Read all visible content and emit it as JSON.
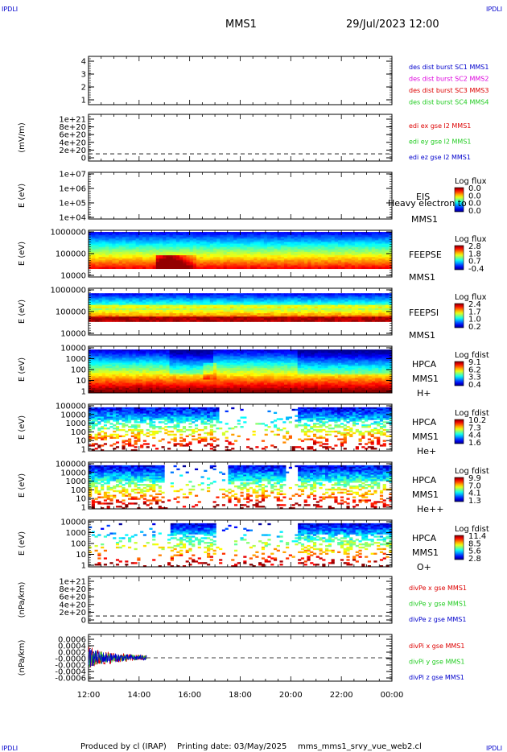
{
  "header": {
    "corner_label": "IPDLI",
    "mission": "MMS1",
    "datetime": "29/Jul/2023 12:00"
  },
  "footer": {
    "credit": "Produced by cl (IRAP)",
    "printing_date": "Printing date: 03/May/2025",
    "script_name": "mms_mms1_srvy_vue_web2.cl"
  },
  "colors": {
    "axis": "#000000",
    "blue": "#0000cc",
    "red": "#dd0000",
    "green": "#22cc22",
    "magenta": "#dd00dd"
  },
  "chart_data": [
    {
      "type": "line",
      "id": "burst",
      "yticks": [
        "4",
        "3",
        "2",
        "1"
      ],
      "ylim": [
        0.6,
        4.4
      ],
      "series": [
        {
          "name": "des dist burst SC1 MMS1",
          "color": "#0000cc"
        },
        {
          "name": "des dist burst SC2 MMS2",
          "color": "#dd00dd"
        },
        {
          "name": "des dist burst SC3 MMS3",
          "color": "#dd0000"
        },
        {
          "name": "des dist burst SC4 MMS4",
          "color": "#22cc22"
        }
      ]
    },
    {
      "type": "line",
      "id": "edi",
      "ylabel": "(mV/m)",
      "yticks": [
        "1e+21",
        "8e+20",
        "6e+20",
        "4e+20",
        "2e+20",
        "0"
      ],
      "ylim": [
        -2e+20,
        1.1e+21
      ],
      "zero_line": true,
      "series": [
        {
          "name": "edi ex gse l2 MMS1",
          "color": "#dd0000"
        },
        {
          "name": "edi ey gse l2 MMS1",
          "color": "#22cc22"
        },
        {
          "name": "edi ez gse l2 MMS1",
          "color": "#0000cc"
        }
      ]
    },
    {
      "type": "heatmap",
      "id": "eis",
      "ylabel": "E (eV)",
      "yticks": [
        "1e+07",
        "1e+06",
        "1e+05",
        "1e+04"
      ],
      "labels": [
        "EIS",
        "Heavy electron to",
        "MMS1"
      ],
      "colorbar": {
        "title": "Log flux",
        "ticks": [
          "0.0",
          "0.0",
          "0.0",
          "0.0"
        ]
      }
    },
    {
      "type": "heatmap",
      "id": "feepse",
      "ylabel": "E (eV)",
      "yticks": [
        "1000000",
        "100000",
        "10000"
      ],
      "labels": [
        "FEEPSE",
        "MMS1"
      ],
      "colorbar": {
        "title": "Log flux",
        "ticks": [
          "2.8",
          "1.8",
          "0.7",
          "-0.4"
        ]
      }
    },
    {
      "type": "heatmap",
      "id": "feepsi",
      "ylabel": "E (eV)",
      "yticks": [
        "1000000",
        "100000",
        "10000"
      ],
      "labels": [
        "FEEPSI",
        "MMS1"
      ],
      "colorbar": {
        "title": "Log flux",
        "ticks": [
          "2.4",
          "1.7",
          "1.0",
          "0.2"
        ]
      }
    },
    {
      "type": "heatmap",
      "id": "hpca_h",
      "ylabel": "E (eV)",
      "yticks": [
        "10000",
        "1000",
        "100",
        "10",
        "1"
      ],
      "labels": [
        "HPCA",
        "MMS1",
        "H+"
      ],
      "colorbar": {
        "title": "Log fdist",
        "ticks": [
          "9.1",
          "6.2",
          "3.3",
          "0.4"
        ]
      }
    },
    {
      "type": "heatmap",
      "id": "hpca_he",
      "ylabel": "E (eV)",
      "yticks": [
        "100000",
        "10000",
        "1000",
        "100",
        "10",
        "1"
      ],
      "labels": [
        "HPCA",
        "MMS1",
        "He+"
      ],
      "colorbar": {
        "title": "Log fdist",
        "ticks": [
          "10.2",
          "7.3",
          "4.4",
          "1.6"
        ]
      }
    },
    {
      "type": "heatmap",
      "id": "hpca_hepp",
      "ylabel": "E (eV)",
      "yticks": [
        "100000",
        "10000",
        "1000",
        "100",
        "10",
        "1"
      ],
      "labels": [
        "HPCA",
        "MMS1",
        "He++"
      ],
      "colorbar": {
        "title": "Log fdist",
        "ticks": [
          "9.9",
          "7.0",
          "4.1",
          "1.3"
        ]
      }
    },
    {
      "type": "heatmap",
      "id": "hpca_o",
      "ylabel": "E (eV)",
      "yticks": [
        "10000",
        "1000",
        "100",
        "10",
        "1"
      ],
      "labels": [
        "HPCA",
        "MMS1",
        "O+"
      ],
      "colorbar": {
        "title": "Log fdist",
        "ticks": [
          "11.4",
          "8.5",
          "5.6",
          "2.8"
        ]
      }
    },
    {
      "type": "line",
      "id": "divpe",
      "ylabel": "(nPa/km)",
      "yticks": [
        "1e+21",
        "8e+20",
        "6e+20",
        "4e+20",
        "2e+20",
        "0"
      ],
      "ylim": [
        -2e+20,
        1.1e+21
      ],
      "zero_line": true,
      "series": [
        {
          "name": "divPe x gse MMS1",
          "color": "#dd0000"
        },
        {
          "name": "divPe y gse MMS1",
          "color": "#22cc22"
        },
        {
          "name": "divPe z gse MMS1",
          "color": "#0000cc"
        }
      ]
    },
    {
      "type": "line",
      "id": "divpi",
      "ylabel": "(nPa/km)",
      "yticks": [
        "0.0006",
        "0.0004",
        "0.0002",
        "-0.0000",
        "-0.0002",
        "-0.0004",
        "-0.0006"
      ],
      "ylim": [
        -0.0007,
        0.0007
      ],
      "zero_line": true,
      "x_extent_hours": [
        0,
        2.3
      ],
      "series": [
        {
          "name": "divPi x gse MMS1",
          "color": "#dd0000"
        },
        {
          "name": "divPi y gse MMS1",
          "color": "#22cc22"
        },
        {
          "name": "divPi z gse MMS1",
          "color": "#0000cc"
        }
      ]
    }
  ],
  "xaxis": {
    "ticks": [
      "12:00",
      "14:00",
      "16:00",
      "18:00",
      "20:00",
      "22:00",
      "00:00"
    ],
    "range_hours": [
      0,
      12
    ]
  }
}
